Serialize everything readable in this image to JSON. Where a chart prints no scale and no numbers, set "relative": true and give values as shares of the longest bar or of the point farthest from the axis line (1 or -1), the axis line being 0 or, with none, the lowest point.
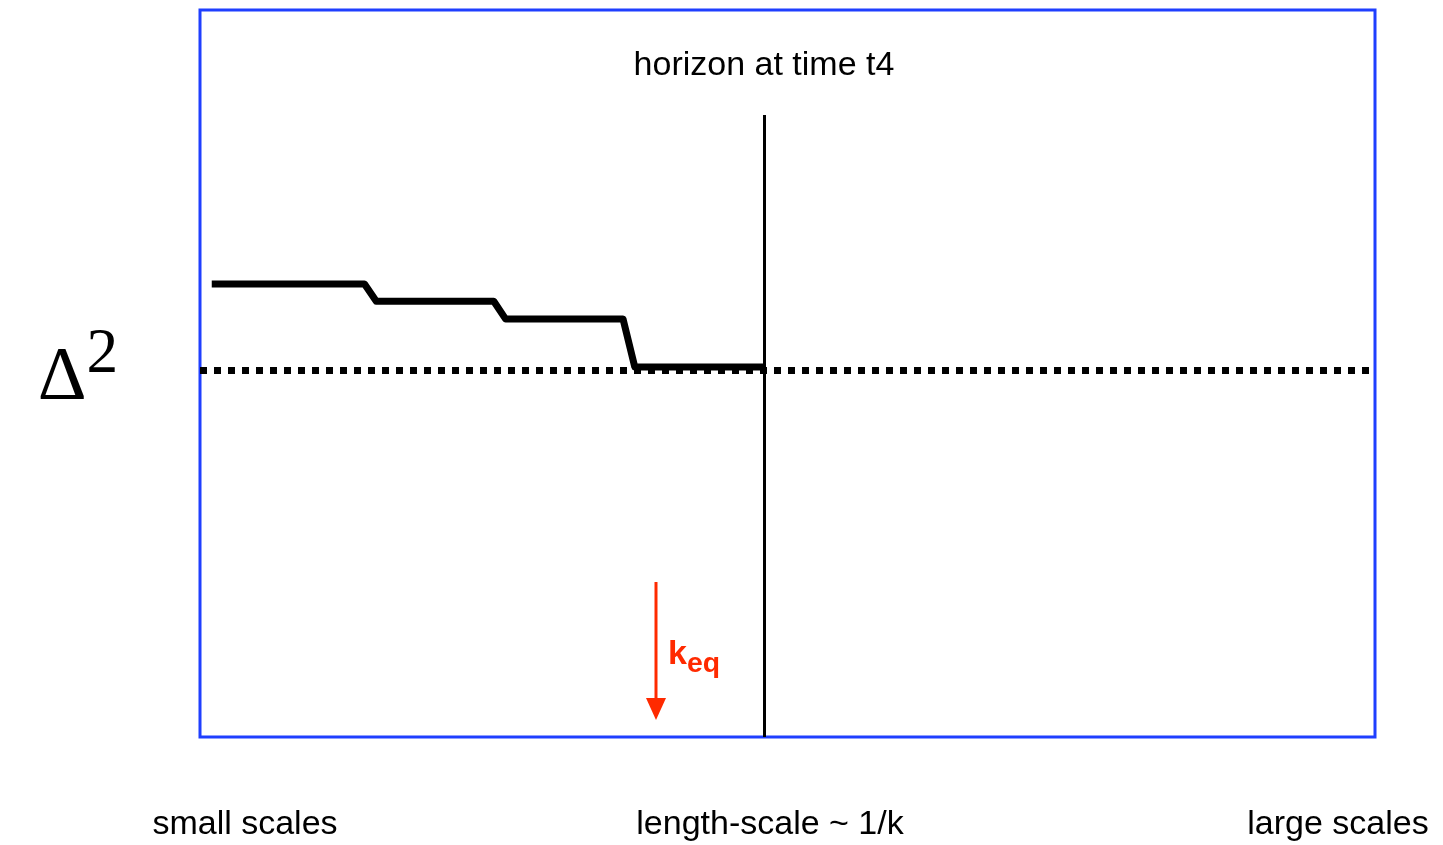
{
  "chart_data": {
    "type": "line",
    "relative": true,
    "tick_labels": false,
    "marker": "none",
    "line_style": "solid",
    "xlabel": "length-scale ~ 1/k",
    "ylabel": "Δ$^{2}$",
    "categories": [
      null,
      null,
      null,
      null,
      null,
      null,
      null,
      null,
      null,
      null,
      null,
      null,
      null,
      null,
      null,
      null,
      null,
      null,
      null,
      null,
      null,
      null,
      null,
      null,
      null,
      null,
      null,
      null,
      null,
      null,
      null,
      null,
      null,
      null,
      null,
      null,
      null,
      null,
      null,
      null,
      null,
      null,
      null,
      null,
      null,
      null,
      null,
      null,
      null,
      null,
      null,
      null,
      null,
      null,
      null,
      null,
      null,
      null,
      null,
      null,
      null,
      null,
      null,
      null,
      null,
      null,
      null,
      null,
      null,
      null,
      null,
      null,
      null,
      null,
      null,
      null,
      null,
      null,
      null,
      null,
      null,
      null,
      null,
      null,
      null,
      null,
      null,
      null,
      null,
      null,
      null,
      null,
      null,
      null,
      null,
      null,
      null,
      null,
      null,
      null,
      null
    ],
    "series": [
      {
        "color": "#000000",
        "values": [
          null,
          1,
          1,
          1,
          1,
          1,
          1,
          1,
          1,
          1,
          1,
          1,
          1,
          1,
          1,
          0.962,
          0.962,
          0.962,
          0.962,
          0.962,
          0.962,
          0.962,
          0.962,
          0.962,
          0.962,
          0.962,
          0.923,
          0.923,
          0.923,
          0.923,
          0.923,
          0.923,
          0.923,
          0.923,
          0.923,
          0.923,
          0.923,
          0.817,
          0.817,
          0.817,
          0.817,
          0.817,
          0.817,
          0.817,
          0.817,
          0.817,
          0.817,
          0.817,
          0.817,
          null,
          null,
          null,
          null,
          null,
          null,
          null,
          null,
          null,
          null,
          null,
          null,
          null,
          null,
          null,
          null,
          null,
          null,
          null,
          null,
          null,
          null,
          null,
          null,
          null,
          null,
          null,
          null,
          null,
          null,
          null,
          null,
          null,
          null,
          null,
          null,
          null,
          null,
          null,
          null,
          null,
          null,
          null,
          null,
          null,
          null,
          null,
          null,
          null,
          null,
          null,
          null
        ]
      }
    ],
    "ref_lines": [
      {
        "axis": "y",
        "value": 0.806,
        "color": "#000000",
        "line_style": "dotted"
      }
    ],
    "annotations": [
      "k$_{eq}$",
      "small scales",
      "large scales",
      "horizon at time t4"
    ]
  }
}
